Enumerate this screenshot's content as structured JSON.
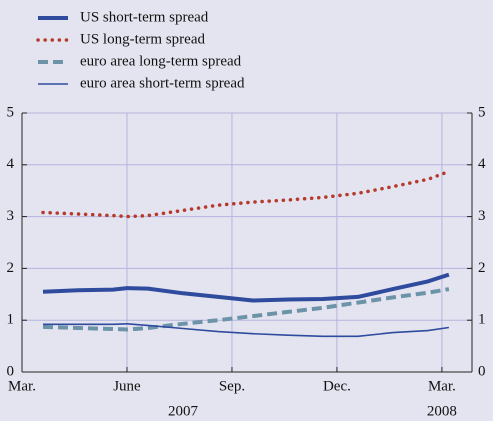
{
  "chart_data": {
    "type": "line",
    "x": [
      0.6,
      1.6,
      2.6,
      3.0,
      3.6,
      4.6,
      5.6,
      6.6,
      7.6,
      8.6,
      9.6,
      10.6,
      11.6,
      12.2
    ],
    "xlim": [
      0,
      12.86
    ],
    "xticks": [
      {
        "value": 0,
        "label": "Mar."
      },
      {
        "value": 3,
        "label": "June"
      },
      {
        "value": 6,
        "label": "Sep."
      },
      {
        "value": 9,
        "label": "Dec."
      },
      {
        "value": 12,
        "label": "Mar."
      }
    ],
    "year_labels": [
      {
        "value": 4.6,
        "label": "2007"
      },
      {
        "value": 12,
        "label": "2008"
      }
    ],
    "ylim": [
      0,
      5
    ],
    "yticks": [
      0,
      1,
      2,
      3,
      4,
      5
    ],
    "y2lim": [
      0,
      5
    ],
    "y2ticks": [
      0,
      1,
      2,
      3,
      4,
      5
    ],
    "grid": true,
    "legend": "top-left",
    "series": [
      {
        "name": "US short-term spread",
        "color": "#2f4b9e",
        "style": "solid-thick",
        "values": [
          1.55,
          1.58,
          1.59,
          1.62,
          1.61,
          1.52,
          1.45,
          1.38,
          1.4,
          1.41,
          1.45,
          1.6,
          1.75,
          1.88
        ]
      },
      {
        "name": "US long-term spread",
        "color": "#b53a2c",
        "style": "dotted",
        "values": [
          3.08,
          3.05,
          3.02,
          3.0,
          3.02,
          3.12,
          3.22,
          3.28,
          3.32,
          3.37,
          3.45,
          3.58,
          3.72,
          3.87
        ]
      },
      {
        "name": "euro area long-term spread",
        "color": "#6d93a8",
        "style": "dashed",
        "values": [
          0.87,
          0.85,
          0.83,
          0.82,
          0.85,
          0.93,
          1.0,
          1.08,
          1.16,
          1.24,
          1.34,
          1.44,
          1.53,
          1.6
        ]
      },
      {
        "name": "euro area short-term spread",
        "color": "#2f4b9e",
        "style": "solid-thin",
        "values": [
          0.92,
          0.92,
          0.92,
          0.93,
          0.9,
          0.84,
          0.78,
          0.74,
          0.71,
          0.69,
          0.69,
          0.76,
          0.8,
          0.86
        ]
      }
    ]
  }
}
